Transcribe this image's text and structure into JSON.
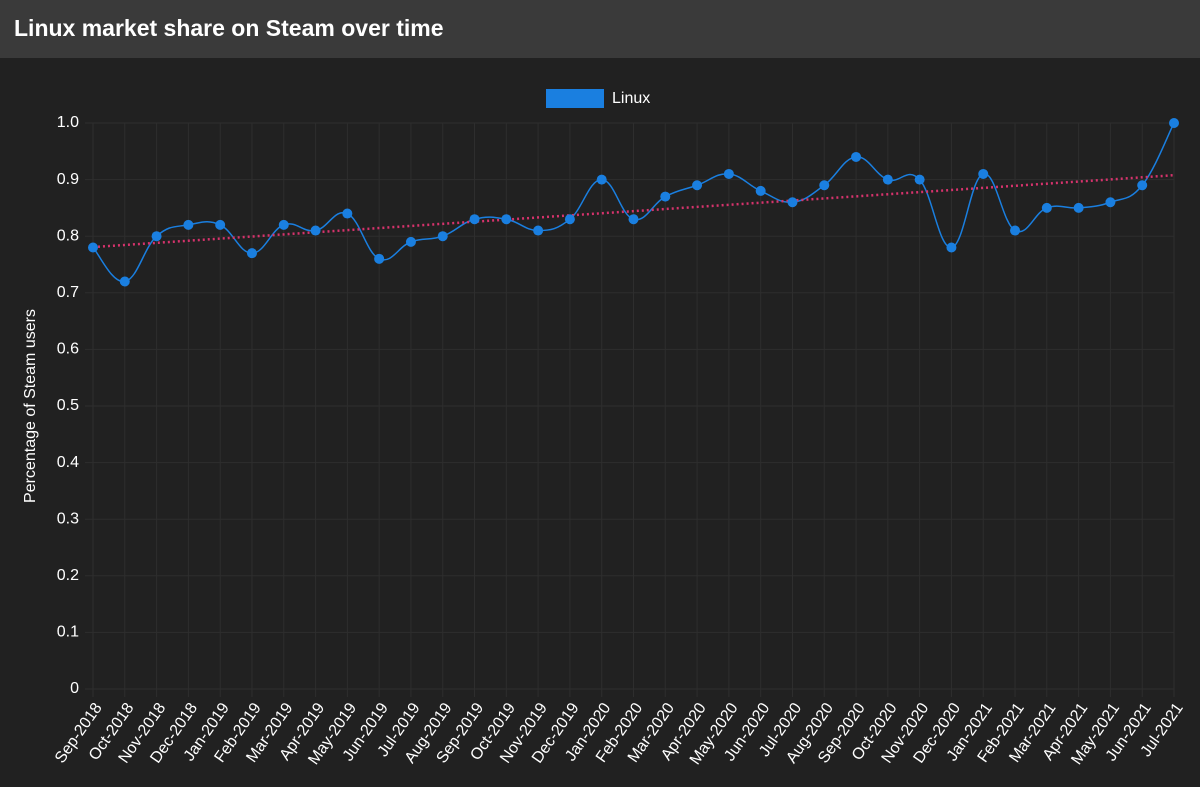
{
  "chart_data": {
    "type": "line",
    "title": "Linux market share on Steam over time",
    "y_label": "Percentage of Steam users",
    "categories": [
      "Sep-2018",
      "Oct-2018",
      "Nov-2018",
      "Dec-2018",
      "Jan-2019",
      "Feb-2019",
      "Mar-2019",
      "Apr-2019",
      "May-2019",
      "Jun-2019",
      "Jul-2019",
      "Aug-2019",
      "Sep-2019",
      "Oct-2019",
      "Nov-2019",
      "Dec-2019",
      "Jan-2020",
      "Feb-2020",
      "Mar-2020",
      "Apr-2020",
      "May-2020",
      "Jun-2020",
      "Jul-2020",
      "Aug-2020",
      "Sep-2020",
      "Oct-2020",
      "Nov-2020",
      "Dec-2020",
      "Jan-2021",
      "Feb-2021",
      "Mar-2021",
      "Apr-2021",
      "May-2021",
      "Jun-2021",
      "Jul-2021"
    ],
    "series": [
      {
        "name": "Linux",
        "color": "#1a7fe0",
        "values": [
          0.78,
          0.72,
          0.8,
          0.82,
          0.82,
          0.77,
          0.82,
          0.81,
          0.84,
          0.76,
          0.79,
          0.8,
          0.83,
          0.83,
          0.81,
          0.83,
          0.9,
          0.83,
          0.87,
          0.89,
          0.91,
          0.88,
          0.86,
          0.89,
          0.94,
          0.9,
          0.9,
          0.78,
          0.91,
          0.81,
          0.85,
          0.85,
          0.86,
          0.89,
          1.0
        ]
      }
    ],
    "trendline": true,
    "trendline_color": "#d6336c",
    "ylim": [
      0,
      1
    ],
    "yticks": [
      0,
      0.1,
      0.2,
      0.3,
      0.4,
      0.5,
      0.6,
      0.7,
      0.8,
      0.9,
      {
        "value": 1,
        "label": "1.0"
      }
    ],
    "grid": true,
    "legend": "top"
  }
}
